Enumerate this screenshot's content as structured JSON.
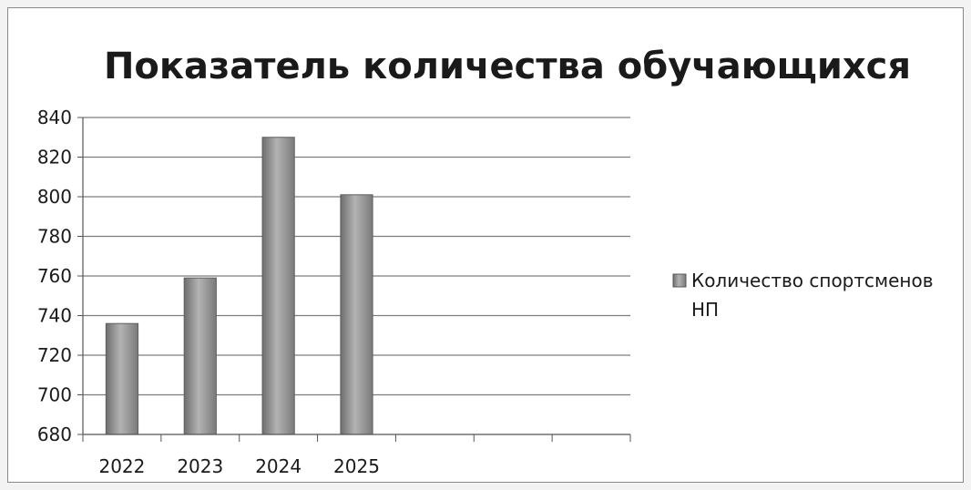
{
  "chart_data": {
    "type": "bar",
    "title": "Показатель количества обучающихся",
    "categories": [
      "2022",
      "2023",
      "2024",
      "2025",
      "",
      "",
      ""
    ],
    "series": [
      {
        "name": "Количество спортсменов НП",
        "values": [
          736,
          759,
          830,
          801,
          null,
          null,
          null
        ],
        "color": "#8c8c8c"
      }
    ],
    "ylim": [
      680,
      840
    ],
    "yticks": [
      680,
      700,
      720,
      740,
      760,
      780,
      800,
      820,
      840
    ],
    "xlabel": "",
    "ylabel": "",
    "grid": true,
    "legend": "right"
  }
}
